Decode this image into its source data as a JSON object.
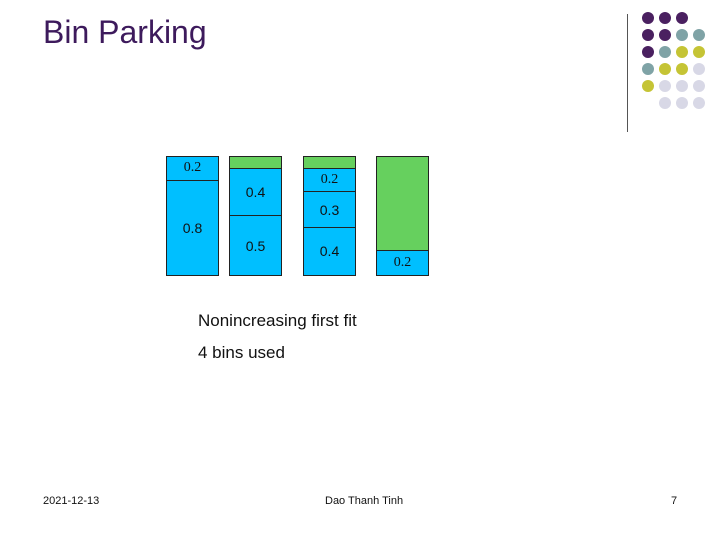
{
  "slide": {
    "title": "Bin Parking",
    "notes": [
      "Nonincreasing first fit",
      "4 bins used"
    ],
    "footer": {
      "date": "2021-12-13",
      "author": "Dao Thanh Tinh",
      "page": "7"
    }
  },
  "colors": {
    "item": "#00bfff",
    "free": "#66d05e",
    "title": "#3d1a5c",
    "dot_purple": "#4a2060",
    "dot_teal": "#7fa3a6",
    "dot_olive": "#c5c435",
    "dot_lavender": "#d8d8e6"
  },
  "bins": [
    {
      "name": "bin-1",
      "segments": [
        {
          "label": "0.2",
          "size": 0.2,
          "kind": "item"
        },
        {
          "label": "0.8",
          "size": 0.8,
          "kind": "item"
        }
      ]
    },
    {
      "name": "bin-2",
      "segments": [
        {
          "label": "",
          "size": 0.1,
          "kind": "free"
        },
        {
          "label": "0.4",
          "size": 0.4,
          "kind": "item"
        },
        {
          "label": "0.5",
          "size": 0.5,
          "kind": "item"
        }
      ]
    },
    {
      "name": "bin-3",
      "segments": [
        {
          "label": "",
          "size": 0.1,
          "kind": "free"
        },
        {
          "label": "0.2",
          "size": 0.2,
          "kind": "item"
        },
        {
          "label": "0.3",
          "size": 0.3,
          "kind": "item"
        },
        {
          "label": "0.4",
          "size": 0.4,
          "kind": "item"
        }
      ]
    },
    {
      "name": "bin-4",
      "segments": [
        {
          "label": "",
          "size": 0.8,
          "kind": "free"
        },
        {
          "label": "0.2",
          "size": 0.2,
          "kind": "item"
        }
      ]
    }
  ]
}
